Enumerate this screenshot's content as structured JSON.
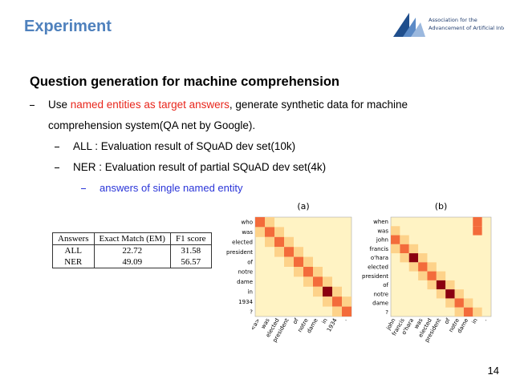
{
  "header": {
    "title": "Experiment",
    "logo_text": [
      "Association for the",
      "Advancement of Artificial Intelligence"
    ]
  },
  "body": {
    "heading": "Question generation for machine comprehension",
    "bullets": [
      {
        "parts": [
          "Use ",
          "named entities as target answers",
          ", generate synthetic data for machine",
          "comprehension system(QA net by Google)."
        ]
      },
      {
        "parts": [
          "ALL : Evaluation result of SQuAD dev set(10k)"
        ]
      },
      {
        "parts": [
          "NER : Evaluation result of partial SQuAD dev set(4k)"
        ]
      },
      {
        "parts": [
          "answers of single named entity"
        ]
      }
    ]
  },
  "table": {
    "header": [
      "Answers",
      "Exact Match (EM)",
      "F1 score"
    ],
    "rows": [
      [
        "ALL",
        22.72,
        31.58
      ],
      [
        "NER",
        49.09,
        56.57
      ]
    ]
  },
  "figures": [
    {
      "label": "(a)",
      "rows": [
        "who",
        "was",
        "elected",
        "president",
        "of",
        "notre",
        "dame",
        "in",
        "1934",
        "?"
      ],
      "cols": [
        "<a>",
        "was",
        "elected",
        "president",
        "of",
        "notre",
        "dame",
        "in",
        "1934",
        "."
      ]
    },
    {
      "label": "(b)",
      "rows": [
        "when",
        "was",
        "john",
        "francis",
        "o'hara",
        "elected",
        "president",
        "of",
        "notre",
        "dame",
        "?"
      ],
      "cols": [
        "john",
        "francis",
        "o'hara",
        "was",
        "elected",
        "president",
        "of",
        "notre",
        "dame",
        "in",
        "."
      ]
    }
  ],
  "page_number": "14"
}
